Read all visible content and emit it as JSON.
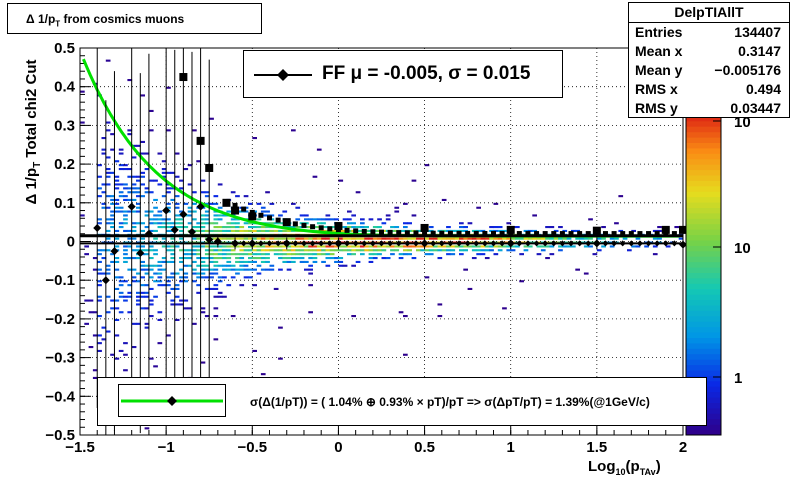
{
  "title": "Δ 1/p_T from cosmics muons",
  "title_main": "Δ 1/p",
  "title_sub": "T",
  "title_rest": " from cosmics muons",
  "stats": {
    "name": "DelpTIAllT",
    "rows": [
      {
        "label": "Entries",
        "value": "134407"
      },
      {
        "label": "Mean x",
        "value": "0.3147"
      },
      {
        "label": "Mean y",
        "value": "−0.005176"
      },
      {
        "label": "RMS x",
        "value": "0.494"
      },
      {
        "label": "RMS y",
        "value": "0.03447"
      }
    ]
  },
  "fit_text": "FF μ = -0.005, σ =   0.015",
  "legend_text": "σ(Δ(1/pT)) = ( 1.04% ⊕  0.93% × pT)/pT => σ(ΔpT/pT) =  1.39%(@1GeV/c)",
  "ylabel_parts": {
    "a": "Δ  1/p",
    "b": "T",
    "c": "  Total chi2 Cut"
  },
  "xlabel_parts": {
    "a": "Log",
    "b": "10",
    "c": "(p",
    "d": "TAv",
    "e": ")"
  },
  "colors": {
    "fit_line": "#00e000",
    "marker": "#000000"
  },
  "chart_data": {
    "type": "heatmap",
    "title": "Δ 1/p_T from cosmics muons",
    "xlabel": "Log10(pTAv)",
    "ylabel": "Δ 1/pT  Total chi2 Cut",
    "xlim": [
      -1.5,
      2
    ],
    "ylim": [
      -0.5,
      0.5
    ],
    "grid": true,
    "z_scale": "log",
    "x_ticks": [
      "−1.5",
      "−1",
      "−0.5",
      "0",
      "0.5",
      "1",
      "1.5",
      "2"
    ],
    "y_ticks": [
      "−0.5",
      "−0.4",
      "−0.3",
      "−0.2",
      "−0.1",
      "0",
      "0.1",
      "0.2",
      "0.3",
      "0.4",
      "0.5"
    ],
    "z_ticks": [
      "1",
      "10",
      "10"
    ],
    "mean_profile": {
      "x": [
        -1.4,
        -1.35,
        -1.3,
        -1.2,
        -1.15,
        -1.1,
        -1.0,
        -0.95,
        -0.9,
        -0.85,
        -0.8,
        -0.75,
        -0.7,
        -0.6,
        -0.5,
        -0.3,
        0,
        0.5,
        1.0,
        1.5,
        2.0
      ],
      "y": [
        0.035,
        -0.1,
        -0.025,
        0.09,
        -0.03,
        0.02,
        0.08,
        0.03,
        0.07,
        0.025,
        0.09,
        0.005,
        0.0,
        -0.005,
        -0.005,
        -0.005,
        -0.005,
        -0.005,
        -0.005,
        -0.005,
        -0.008
      ]
    },
    "sigma_profile": {
      "x": [
        -0.9,
        -0.8,
        -0.75,
        -0.65,
        -0.6,
        -0.5,
        -0.3,
        0,
        0.5,
        1.0,
        1.5,
        1.9,
        2.0
      ],
      "y": [
        0.425,
        0.26,
        0.19,
        0.1,
        0.08,
        0.065,
        0.05,
        0.04,
        0.035,
        0.03,
        0.028,
        0.03,
        0.03
      ]
    },
    "resolution_fit": {
      "a_percent": 1.04,
      "b_percent": 0.93
    },
    "fit": {
      "mu": -0.005,
      "sigma": 0.015
    }
  }
}
